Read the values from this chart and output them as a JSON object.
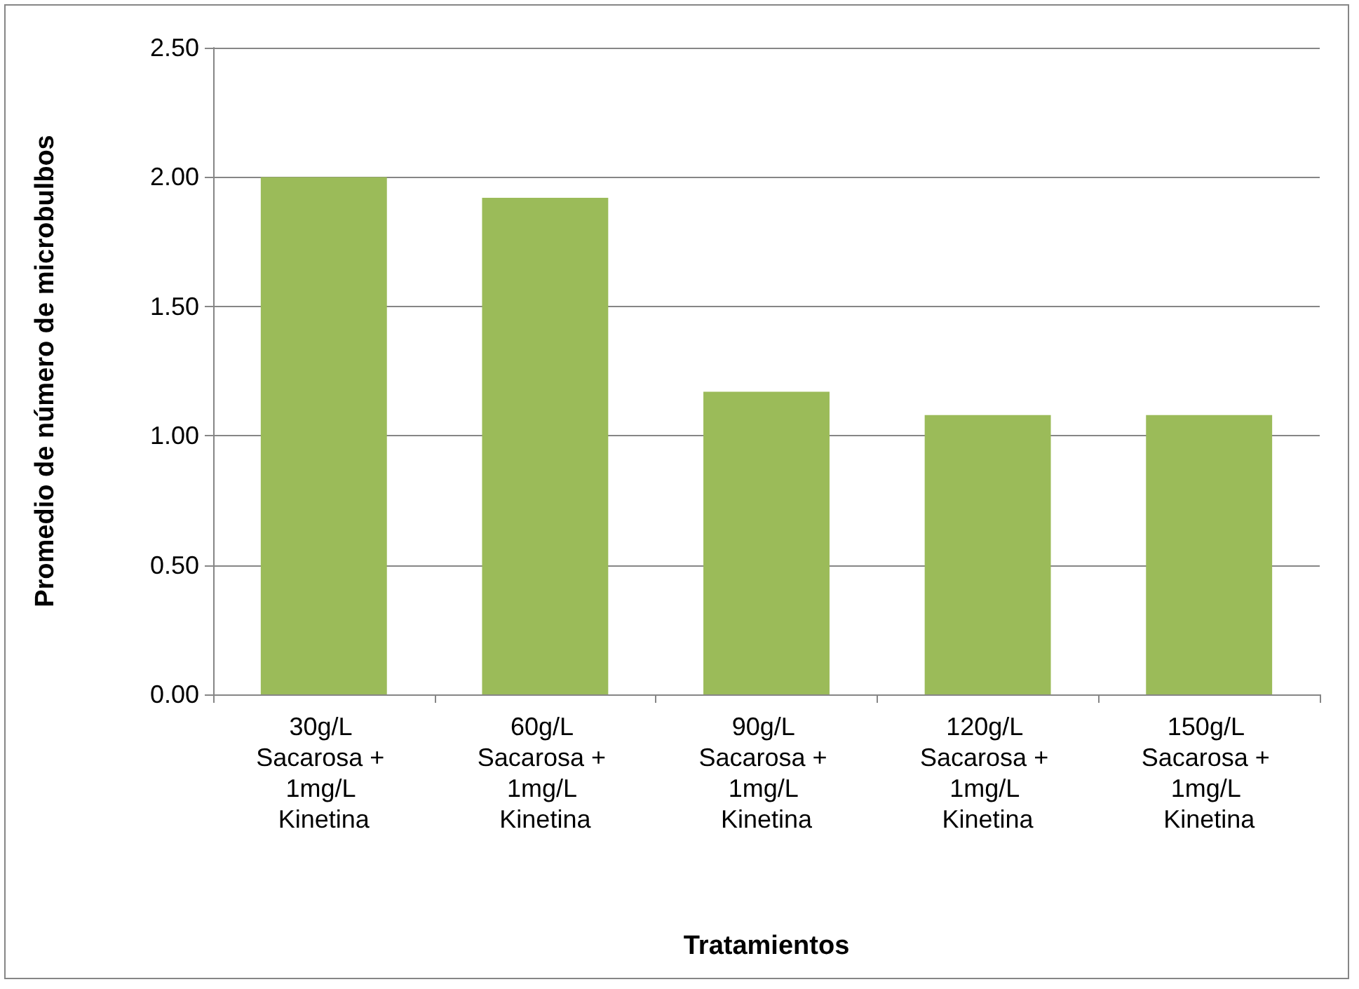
{
  "chart_data": {
    "type": "bar",
    "xlabel": "Tratamientos",
    "ylabel": "Promedio de número de microbulbos",
    "categories": [
      "30g/L Sacarosa + 1mg/L Kinetina",
      "60g/L Sacarosa + 1mg/L Kinetina",
      "90g/L Sacarosa + 1mg/L Kinetina",
      "120g/L Sacarosa + 1mg/L Kinetina",
      "150g/L Sacarosa + 1mg/L Kinetina"
    ],
    "values": [
      2.0,
      1.92,
      1.17,
      1.08,
      1.08
    ],
    "color": "#9bbb59",
    "ylim": [
      0,
      2.5
    ],
    "yticks": [
      {
        "value": 0,
        "label": "0.00"
      },
      {
        "value": 0.5,
        "label": "0.50"
      },
      {
        "value": 1,
        "label": "1.00"
      },
      {
        "value": 1.5,
        "label": "1.50"
      },
      {
        "value": 2,
        "label": "2.00"
      },
      {
        "value": 2.5,
        "label": "2.50"
      }
    ],
    "grid": "y"
  }
}
